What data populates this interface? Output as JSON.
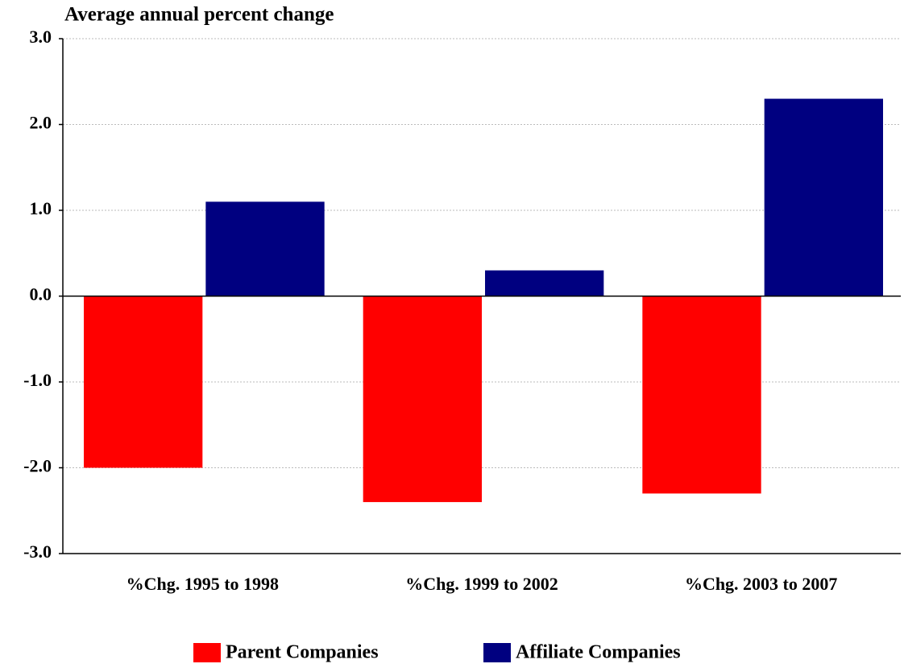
{
  "chart_data": {
    "type": "bar",
    "y_label": "Average annual percent change",
    "categories": [
      "%Chg. 1995 to 1998",
      "%Chg. 1999 to 2002",
      "%Chg. 2003 to 2007"
    ],
    "series": [
      {
        "name": "Parent Companies",
        "color": "#ff0000",
        "values": [
          -2.0,
          -2.4,
          -2.3
        ]
      },
      {
        "name": "Affiliate Companies",
        "color": "#000080",
        "values": [
          1.1,
          0.3,
          2.3
        ]
      }
    ],
    "ylim": [
      -3,
      3
    ],
    "yticks": [
      {
        "value": -3,
        "label": "-3.0"
      },
      {
        "value": -2,
        "label": "-2.0"
      },
      {
        "value": -1,
        "label": "-1.0"
      },
      {
        "value": 0,
        "label": "0.0"
      },
      {
        "value": 1,
        "label": "1.0"
      },
      {
        "value": 2,
        "label": "2.0"
      },
      {
        "value": 3,
        "label": "3.0"
      }
    ],
    "grid": true,
    "legend": "bottom"
  }
}
